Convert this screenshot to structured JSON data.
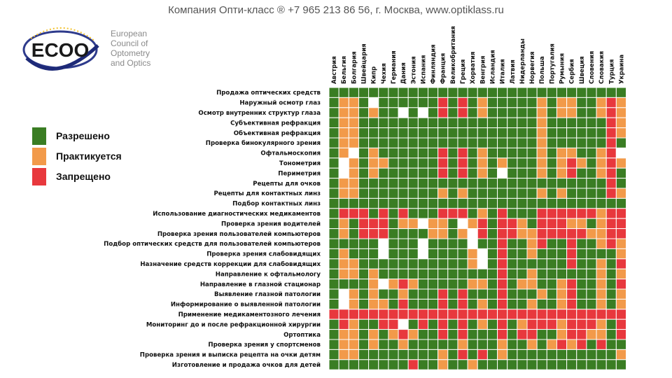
{
  "header": {
    "text": "Компания Опти-класс ® +7 965 213 86 56, г. Москва, www.optiklass.ru"
  },
  "logo": {
    "mark": "ECOO",
    "text_lines": [
      "European",
      "Council of",
      "Optometry",
      "and Optics"
    ]
  },
  "legend": [
    {
      "code": "G",
      "label": "Разрешено",
      "color": "#3a7d23"
    },
    {
      "code": "O",
      "label": "Практикуется",
      "color": "#f29a4a"
    },
    {
      "code": "R",
      "label": "Запрещено",
      "color": "#e8383d"
    }
  ],
  "chart_data": {
    "type": "heatmap",
    "title": "",
    "legend_position": "left",
    "colors": {
      "G": "#3a7d23",
      "O": "#f29a4a",
      "R": "#e8383d",
      "W": "#ffffff"
    },
    "columns": [
      "Австрия",
      "Бельгия",
      "Болгария",
      "Швейцария",
      "Кипр",
      "Чехия",
      "Германия",
      "Дания",
      "Эстония",
      "Испания",
      "Финляндия",
      "Франция",
      "Великобритания",
      "Греция",
      "Хорватия",
      "Венгрия",
      "Исландия",
      "Италия",
      "Латвия",
      "Нидерланды",
      "Норвегия",
      "Польша",
      "Португалия",
      "Румыния",
      "Сербия",
      "Швеция",
      "Словения",
      "Словакия",
      "Турция",
      "Украина"
    ],
    "rows": [
      "Продажа оптических средств",
      "Наружный осмотр глаз",
      "Осмотр внутренних структур глаза",
      "Субъективная рефракция",
      "Объективная рефракция",
      "Проверка бинокулярного зрения",
      "Офтальмоскопия",
      "Тонометрия",
      "Периметрия",
      "Рецепты для очков",
      "Рецепты для контактных линз",
      "Подбор контактных линз",
      "Использование диагностических медикаментов",
      "Проверка зрения водителей",
      "Проверка зрения пользователей компьютеров",
      "Подбор оптических средств для пользователей компьютеров",
      "Проверка зрения слабовидящих",
      "Назначение средств коррекции для слабовидящих",
      "Направление к офтальмологу",
      "Направление в глазной стационар",
      "Выявление глазной патологии",
      "Информирование о выявленной патологии",
      "Применение медикаментозного лечения",
      "Мониторинг до и после рефракционной хирургии",
      "Ортоптика",
      "Проверка зрения у спортсменов",
      "Проверка зрения и выписка рецепта на очки детям",
      "Изготовление и продажа очков для детей"
    ],
    "values": [
      "GGGGGGGGGGGGGGGGGGGGGGGGGGGGGG",
      "GOOGWGGGGGGRGRGOGGGGGOGOOGGORO",
      "GOOGOGGWGWGRGRGOGGGGGOGOOGGORO",
      "GOOGGGGGGGGGGGGGGGGGGOGGGGGGRO",
      "GOOGGGGGGGGGGGGGGGGGGOGGGGGGRO",
      "GOOGGGGGGGGGGGGGGGGGGOGGGGGGRG",
      "GOWGOGGGGGGRGRGOGGGGGOGOOGGORW",
      "GWOGOOGGGGGRGRGOGOGGGOGOROGORO",
      "GWOGOGGGGGGRGRGOGWGGGOGORGGORG",
      "GOOGGGGGGGGGGGGGGGGGGGGGGGGGRG",
      "GOOGGGGGGGGOGOGGGGGGGOGOGGGGRO",
      "GGGGGGGGGGGGGGGGGGGGGGGGGGGGGG",
      "GRRRGRGRGGGRRRGOGRGGGRRRRRRORR",
      "GOGRRRGOOWOOGWORGRROGRRROOGORR",
      "GOGRRRGGGGOOGOWRGRROORRRRROORR",
      "GGGGGWGGGWGGGGWGGRGGORGGRGGORO",
      "GOGGGWGGGWGGGGOWGRGGOGGGRGGGGO",
      "GOOGGGGGGGGGGGOWGRGGGGGGRGGOGR",
      "GOOGOGGGGGGGGGGGGRGGOGGGGGGOGO",
      "GGGGOWOROGGGGGOOGRGOOGGORGGOGR",
      "GWOGOGGOGGGRGRGGGRGGGOGORGGOGO",
      "GWOGOOGRGGGRGRGOGRGGOGGORGGOGO",
      "RRRRRRRRRRRRRRRRRRRRRRRRRRRRRR",
      "GROGGRRWGRGRGRGOGRGORRRORRROGR",
      "GOOGOGOROGGRGRGGGRGRRGGORROOGR",
      "GOOGOGGOGGGGGOGGGOGGOGORORGRGG",
      "GOOGGGGGGGGOGRGRGOGGGGGGGGGGGO",
      "GGGGGGGGRGGOGGOGGGGGGGGGGGGGGG"
    ]
  }
}
